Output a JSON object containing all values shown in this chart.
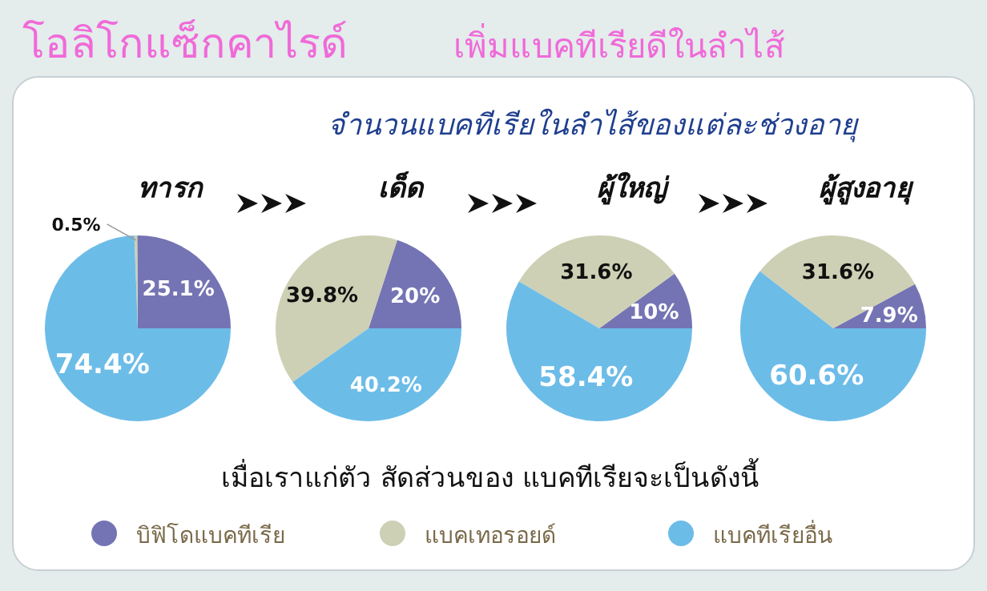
{
  "chart_data": [
    {
      "type": "pie",
      "title": "ทารก",
      "categories": [
        "บิฟิโดแบคทีเรีย",
        "แบคเทอรอยด์",
        "แบคทีเรียอื่น"
      ],
      "values": [
        25.1,
        0.5,
        74.4
      ],
      "value_labels": [
        "25.1%",
        "0.5%",
        "74.4%"
      ],
      "colors": [
        "#7474b4",
        "#cdd0b4",
        "#6cbce8"
      ],
      "annotations": [
        "โอลิโกแซ็กคาไรด์",
        "เพิ่มแบคทีเรียดีในลำไส้",
        "จำนวนแบคทีเรียในลำไส้ของแต่ละช่วงอายุ",
        "เมื่อเราแก่ตัว สัดส่วนของ แบคทีเรียจะเป็นดังนี้"
      ],
      "legend": "bottom"
    },
    {
      "type": "pie",
      "title": "เด็ด",
      "categories": [
        null,
        null,
        null
      ],
      "values": [
        20,
        39.8,
        40.2
      ],
      "value_labels": [
        "20%",
        "39.8%",
        "40.2%"
      ],
      "colors": [
        "#7474b4",
        "#cdd0b4",
        "#6cbce8"
      ]
    },
    {
      "type": "pie",
      "title": "ผู้ใหญ่",
      "categories": [
        null,
        null,
        null
      ],
      "values": [
        10,
        31.6,
        58.4
      ],
      "value_labels": [
        "10%",
        "31.6%",
        "58.4%"
      ],
      "colors": [
        "#7474b4",
        "#cdd0b4",
        "#6cbce8"
      ]
    },
    {
      "type": "pie",
      "title": "ผู้สูงอายุ",
      "categories": [
        null,
        null,
        null
      ],
      "values": [
        7.9,
        31.6,
        60.6
      ],
      "value_labels": [
        "7.9%",
        "31.6%",
        "60.6%"
      ],
      "colors": [
        "#7474b4",
        "#cdd0b4",
        "#6cbce8"
      ]
    }
  ]
}
